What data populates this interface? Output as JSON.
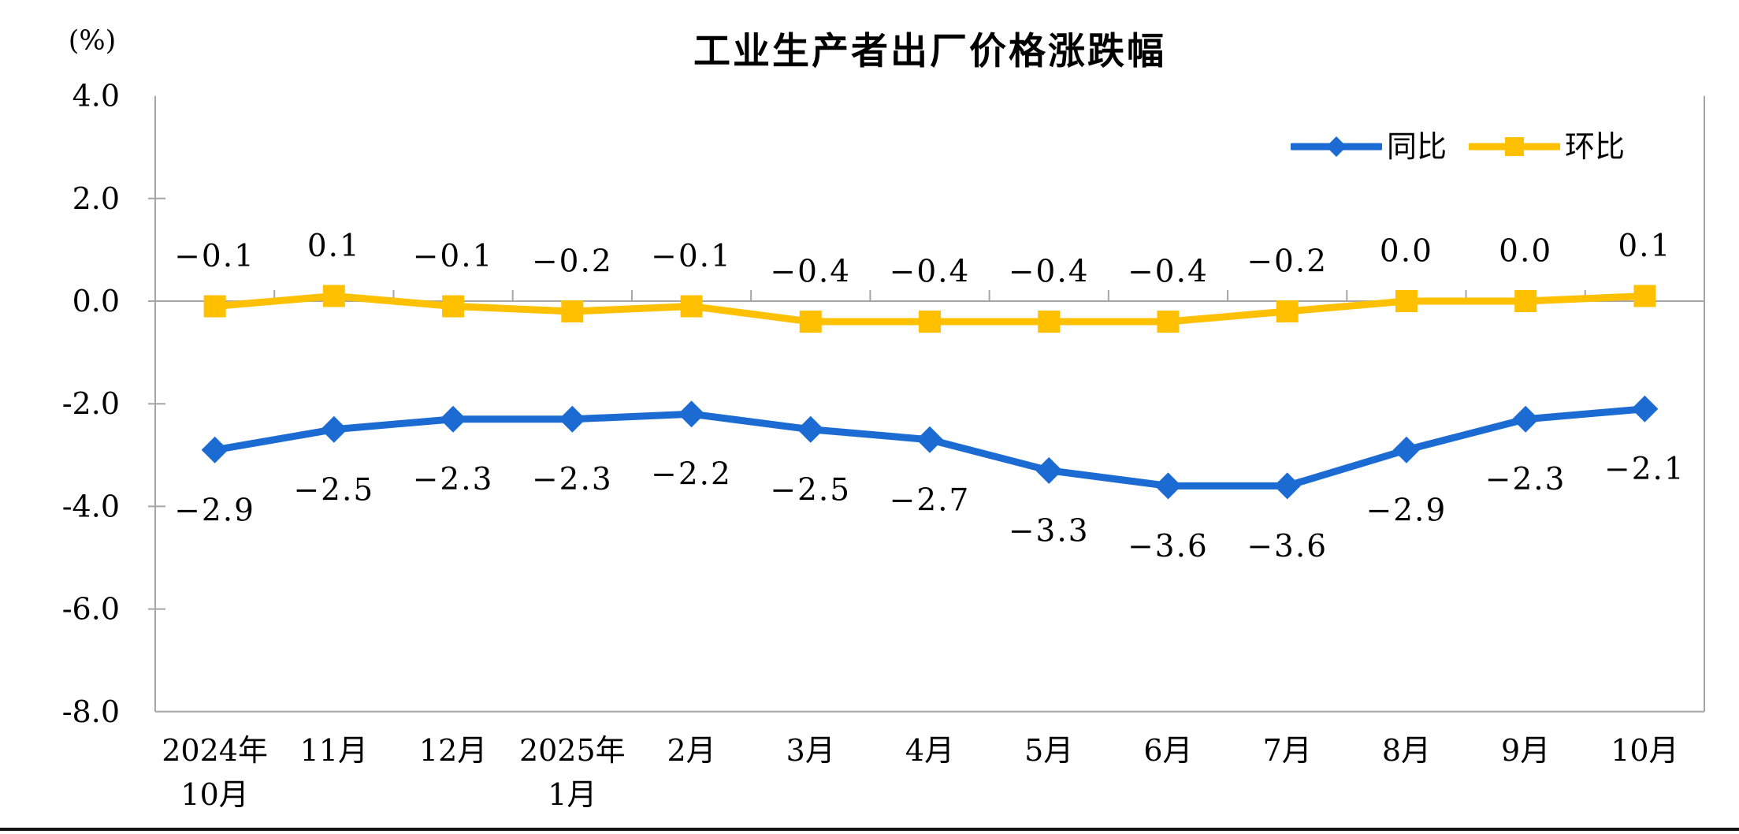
{
  "page": {
    "background": "#ffffff",
    "divider_color": "#141414"
  },
  "chart_data": {
    "type": "line",
    "title": "工业生产者出厂价格涨跌幅",
    "unit_label": "(%)",
    "xlabel": "",
    "ylabel": "(%)",
    "ylim": [
      -8.0,
      4.0
    ],
    "grid": "zero-line-only",
    "legend_position": "top-right-inside",
    "axis_color": "#A6A6A6",
    "text_color": "#000000",
    "categories": [
      [
        "2024年",
        "10月"
      ],
      [
        "11月"
      ],
      [
        "12月"
      ],
      [
        "2025年",
        "1月"
      ],
      [
        "2月"
      ],
      [
        "3月"
      ],
      [
        "4月"
      ],
      [
        "5月"
      ],
      [
        "6月"
      ],
      [
        "7月"
      ],
      [
        "8月"
      ],
      [
        "9月"
      ],
      [
        "10月"
      ]
    ],
    "y_axis": {
      "tick_labels": [
        "4.0",
        "2.0",
        "0.0",
        "-2.0",
        "-4.0",
        "-6.0",
        "-8.0"
      ],
      "tick_values": [
        4,
        2,
        0,
        -2,
        -4,
        -6,
        -8
      ]
    },
    "series": [
      {
        "name": "同比",
        "color": "#1B6BD3",
        "marker": "diamond",
        "label_position": "below",
        "values": [
          -2.9,
          -2.5,
          -2.3,
          -2.3,
          -2.2,
          -2.5,
          -2.7,
          -3.3,
          -3.6,
          -3.6,
          -2.9,
          -2.3,
          -2.1
        ],
        "labels": [
          "−2.9",
          "−2.5",
          "−2.3",
          "−2.3",
          "−2.2",
          "−2.5",
          "−2.7",
          "−3.3",
          "−3.6",
          "−3.6",
          "−2.9",
          "−2.3",
          "−2.1"
        ]
      },
      {
        "name": "环比",
        "color": "#FFC000",
        "marker": "square",
        "label_position": "above",
        "values": [
          -0.1,
          0.1,
          -0.1,
          -0.2,
          -0.1,
          -0.4,
          -0.4,
          -0.4,
          -0.4,
          -0.2,
          0.0,
          0.0,
          0.1
        ],
        "labels": [
          "−0.1",
          "0.1",
          "−0.1",
          "−0.2",
          "−0.1",
          "−0.4",
          "−0.4",
          "−0.4",
          "−0.4",
          "−0.2",
          "0.0",
          "0.0",
          "0.1"
        ]
      }
    ]
  }
}
